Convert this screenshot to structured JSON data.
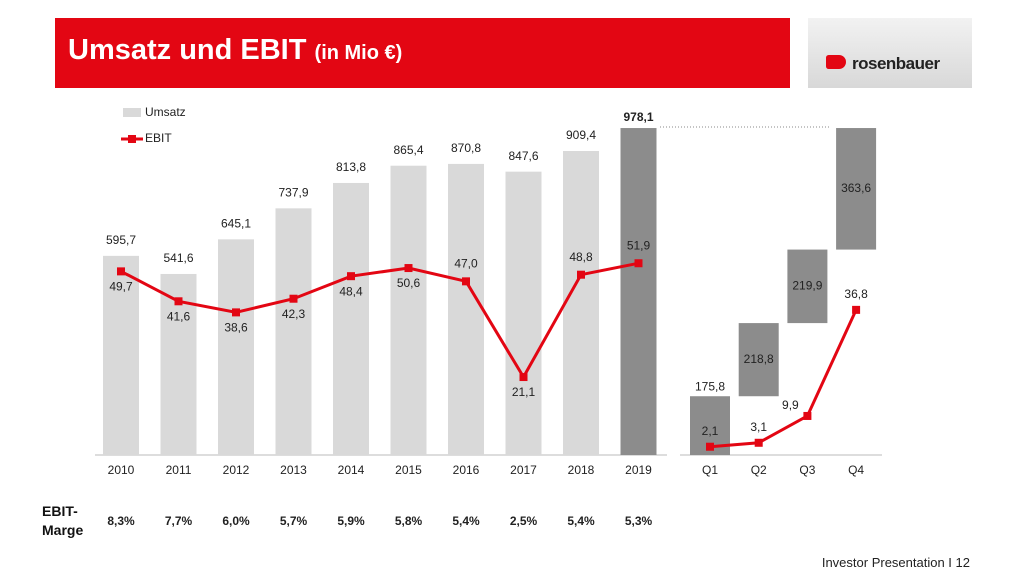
{
  "header": {
    "title": "Umsatz und EBIT",
    "subtitle": "(in Mio €)"
  },
  "logo": "rosenbauer",
  "footer": "Investor Presentation I 12",
  "chart_data": [
    {
      "type": "bar-line",
      "categories": [
        "2010",
        "2011",
        "2012",
        "2013",
        "2014",
        "2015",
        "2016",
        "2017",
        "2018",
        "2019"
      ],
      "series": [
        {
          "name": "Umsatz",
          "type": "bar",
          "color": "#d9d9d9",
          "colors": [
            "#d9d9d9",
            "#d9d9d9",
            "#d9d9d9",
            "#d9d9d9",
            "#d9d9d9",
            "#d9d9d9",
            "#d9d9d9",
            "#d9d9d9",
            "#d9d9d9",
            "#8c8c8c"
          ],
          "values": [
            595.7,
            541.6,
            645.1,
            737.9,
            813.8,
            865.4,
            870.8,
            847.6,
            909.4,
            978.1
          ],
          "value_labels": [
            "595,7",
            "541,6",
            "645,1",
            "737,9",
            "813,8",
            "865,4",
            "870,8",
            "847,6",
            "909,4",
            "978,1"
          ]
        },
        {
          "name": "EBIT",
          "type": "line",
          "axis": "y2",
          "color": "#e30613",
          "values": [
            49.7,
            41.6,
            38.6,
            42.3,
            48.4,
            50.6,
            47.0,
            21.1,
            48.8,
            51.9
          ],
          "value_labels": [
            "49,7",
            "41,6",
            "38,6",
            "42,3",
            "48,4",
            "50,6",
            "47,0",
            "21,1",
            "48,8",
            "51,9"
          ]
        }
      ],
      "ylim": [
        0,
        1050
      ],
      "y2lim": [
        0,
        95
      ],
      "margin_title": "EBIT-Marge",
      "margin": {
        "color": "#e30613",
        "values": [
          8.3,
          7.7,
          6.0,
          5.7,
          5.9,
          5.8,
          5.4,
          2.5,
          5.4,
          5.3
        ],
        "value_labels": [
          "8,3%",
          "7,7%",
          "6,0%",
          "5,7%",
          "5,9%",
          "5,8%",
          "5,4%",
          "2,5%",
          "5,4%",
          "5,3%"
        ]
      }
    },
    {
      "type": "waterfall",
      "categories": [
        "Q1",
        "Q2",
        "Q3",
        "Q4"
      ],
      "series": [
        {
          "type": "bar",
          "color": "#8c8c8c",
          "values": [
            175.8,
            218.8,
            219.9,
            363.6
          ],
          "value_labels": [
            "175,8",
            "218,8",
            "219,9",
            "363,6"
          ]
        },
        {
          "type": "line",
          "axis": "y2",
          "color": "#e30613",
          "values": [
            2.1,
            3.1,
            9.9,
            36.8
          ],
          "value_labels": [
            "2,1",
            "3,1",
            "9,9",
            "36,8"
          ]
        }
      ],
      "ylim": [
        0,
        1050
      ],
      "y2lim": [
        0,
        89
      ]
    }
  ]
}
